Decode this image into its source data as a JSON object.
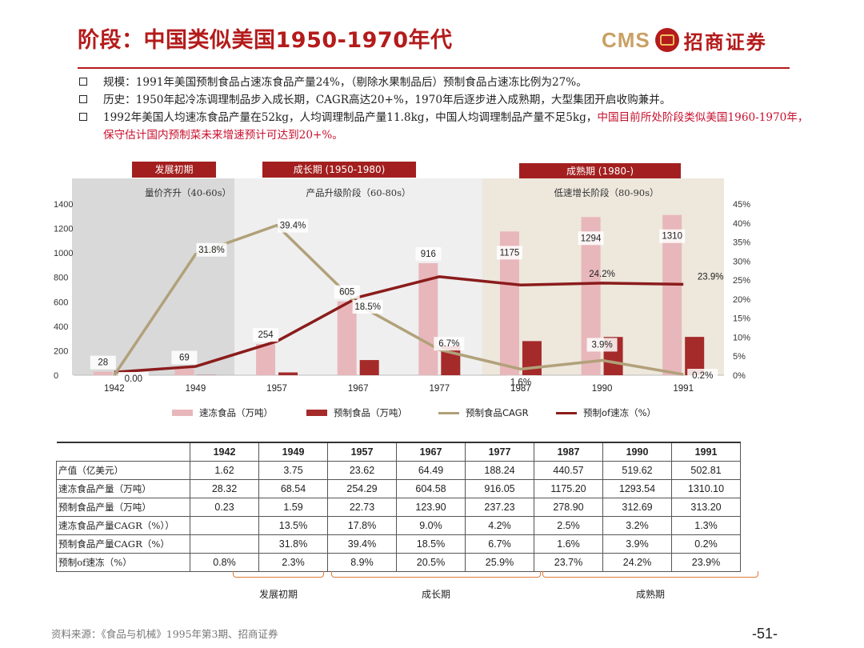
{
  "title": "阶段：中国类似美国1950-1970年代",
  "logo": {
    "text_en": "CMS",
    "text_cn": "招商证券"
  },
  "bullets": [
    {
      "text": "规模：1991年美国预制食品占速冻食品产量24%，（剔除水果制品后）预制食品占速冻比例为27%。"
    },
    {
      "text": "历史：1950年起冷冻调理制品步入成长期，CAGR高达20+%，1970年后逐步进入成熟期，大型集团开启收购兼并。"
    },
    {
      "text_a": "1992年美国人均速冻食品产量在52kg，人均调理制品产量11.8kg，中国人均调理制品产量不足5kg，",
      "text_red": "中国目前所处阶段类似美国1960-1970年，保守估计国内预制菜未来增速预计可达到20+%。"
    }
  ],
  "phase_tags": {
    "early": "发展初期",
    "growth": "成长期 (1950-1980)",
    "mature": "成熟期 (1980-)"
  },
  "chart_data": {
    "type": "bar+line",
    "categories": [
      "1942",
      "1949",
      "1957",
      "1967",
      "1977",
      "1987",
      "1990",
      "1991"
    ],
    "series": [
      {
        "name": "速冻食品（万吨）",
        "type": "bar",
        "axis": "left",
        "color": "#e8b7bb",
        "values": [
          28.32,
          68.54,
          254.29,
          604.58,
          916.05,
          1175.2,
          1293.54,
          1310.1
        ],
        "labels": [
          "28",
          "69",
          "254",
          "605",
          "916",
          "1175",
          "1294",
          "1310"
        ]
      },
      {
        "name": "预制食品（万吨）",
        "type": "bar",
        "axis": "left",
        "color": "#a52a2a",
        "values": [
          0.23,
          1.59,
          22.73,
          123.9,
          237.23,
          278.9,
          312.69,
          313.2
        ]
      },
      {
        "name": "预制食品CAGR",
        "type": "line",
        "axis": "right",
        "color": "#b1a17a",
        "values": [
          0.0,
          31.8,
          39.4,
          18.5,
          6.7,
          1.6,
          3.9,
          0.2
        ],
        "labels": [
          "0.00",
          "31.8%",
          "39.4%",
          "18.5%",
          "6.7%",
          "1.6%",
          "3.9%",
          "0.2%"
        ]
      },
      {
        "name": "预制of速冻（%）",
        "type": "line",
        "axis": "right",
        "color": "#8b1c1c",
        "values": [
          0.8,
          2.3,
          8.9,
          20.5,
          25.9,
          23.7,
          24.2,
          23.9
        ],
        "labels": [
          "",
          "",
          "",
          "",
          "",
          "",
          "24.2%",
          "23.9%"
        ]
      }
    ],
    "ylim_left": [
      0,
      1400
    ],
    "left_ticks": [
      "0",
      "200",
      "400",
      "600",
      "800",
      "1000",
      "1200",
      "1400"
    ],
    "ylim_right": [
      0,
      45
    ],
    "right_ticks": [
      "0%",
      "5%",
      "10%",
      "15%",
      "20%",
      "25%",
      "30%",
      "35%",
      "40%",
      "45%"
    ],
    "region_labels": [
      "量价齐升（40-60s）",
      "产品升级阶段（60-80s）",
      "低速增长阶段（80-90s）"
    ]
  },
  "table": {
    "years": [
      "1942",
      "1949",
      "1957",
      "1967",
      "1977",
      "1987",
      "1990",
      "1991"
    ],
    "rows": [
      {
        "label": "产值（亿美元）",
        "cells": [
          "1.62",
          "3.75",
          "23.62",
          "64.49",
          "188.24",
          "440.57",
          "519.62",
          "502.81"
        ]
      },
      {
        "label": "速冻食品产量（万吨）",
        "cells": [
          "28.32",
          "68.54",
          "254.29",
          "604.58",
          "916.05",
          "1175.20",
          "1293.54",
          "1310.10"
        ]
      },
      {
        "label": "预制食品产量（万吨）",
        "cells": [
          "0.23",
          "1.59",
          "22.73",
          "123.90",
          "237.23",
          "278.90",
          "312.69",
          "313.20"
        ]
      },
      {
        "label": "速冻食品产量CAGR（%））",
        "cells": [
          "",
          "13.5%",
          "17.8%",
          "9.0%",
          "4.2%",
          "2.5%",
          "3.2%",
          "1.3%"
        ]
      },
      {
        "label": "预制食品产量CAGR（%）",
        "cells": [
          "",
          "31.8%",
          "39.4%",
          "18.5%",
          "6.7%",
          "1.6%",
          "3.9%",
          "0.2%"
        ]
      },
      {
        "label": "预制of速冻（%）",
        "cells": [
          "0.8%",
          "2.3%",
          "8.9%",
          "20.5%",
          "25.9%",
          "23.7%",
          "24.2%",
          "23.9%"
        ]
      }
    ]
  },
  "brace_labels": [
    "发展初期",
    "成长期",
    "成熟期"
  ],
  "source": "资料来源：《食品与机械》1995年第3期、招商证券",
  "page_number": "-51-"
}
